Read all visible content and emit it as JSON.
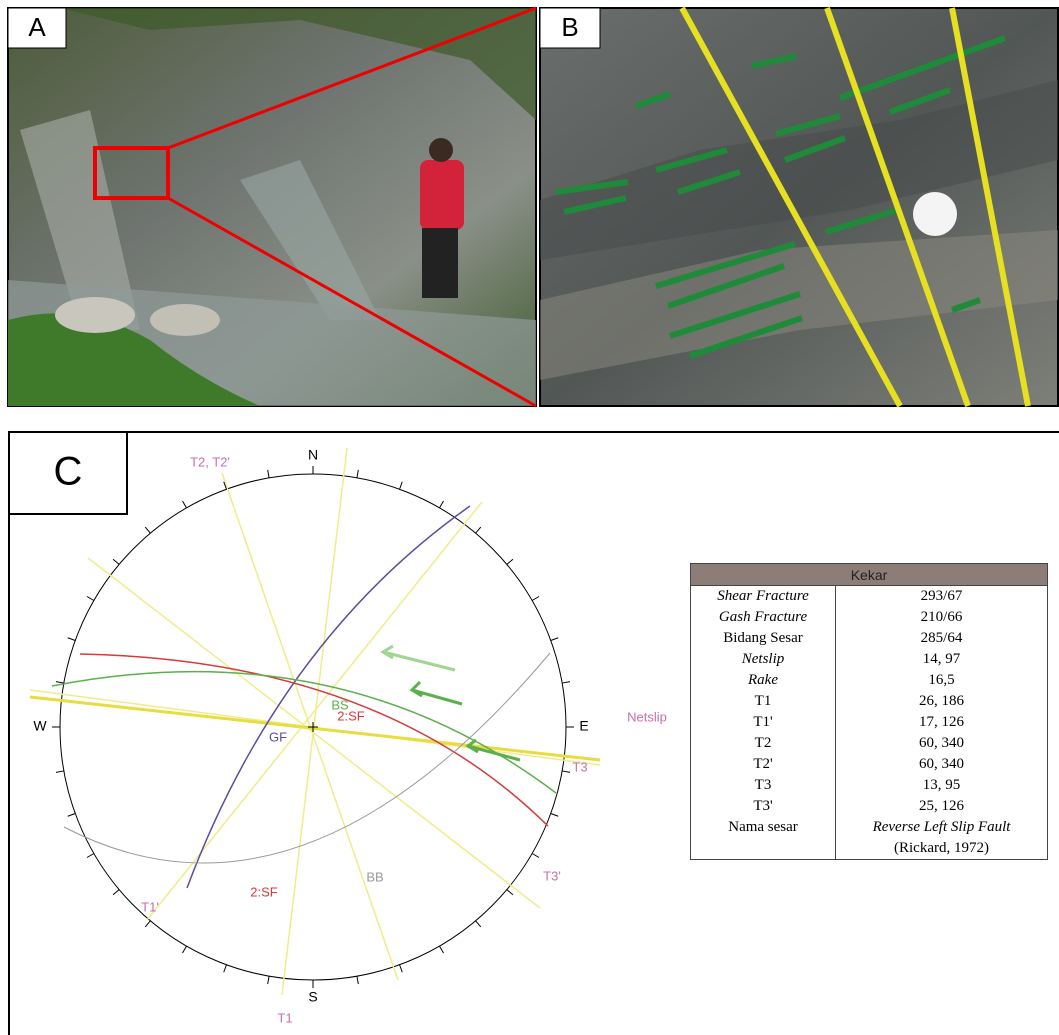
{
  "panel_a": {
    "label": "A"
  },
  "panel_b": {
    "label": "B"
  },
  "panel_c": {
    "label": "C",
    "stereonet": {
      "north": "N",
      "south": "S",
      "east": "E",
      "west": "W",
      "labels": [
        "T2, T2'",
        "Netslip",
        "T3",
        "T3'",
        "T1'",
        "T1",
        "GF",
        "BS",
        "2:SF",
        "BB",
        "2:SF"
      ]
    },
    "table": {
      "header": "Kekar",
      "rows": [
        [
          "Shear Fracture",
          "293/67"
        ],
        [
          "Gash Fracture",
          "210/66"
        ],
        [
          "Bidang Sesar",
          "285/64"
        ],
        [
          "Netslip",
          "14, 97"
        ],
        [
          "Rake",
          "16,5"
        ],
        [
          "T1",
          "26, 186"
        ],
        [
          "T1'",
          "17, 126"
        ],
        [
          "T2",
          "60, 340"
        ],
        [
          "T2'",
          "60, 340"
        ],
        [
          "T3",
          "13, 95"
        ],
        [
          "T3'",
          "25, 126"
        ],
        [
          "Nama sesar",
          "Reverse Left Slip Fault"
        ],
        [
          "",
          "(Rickard, 1972)"
        ]
      ]
    }
  }
}
